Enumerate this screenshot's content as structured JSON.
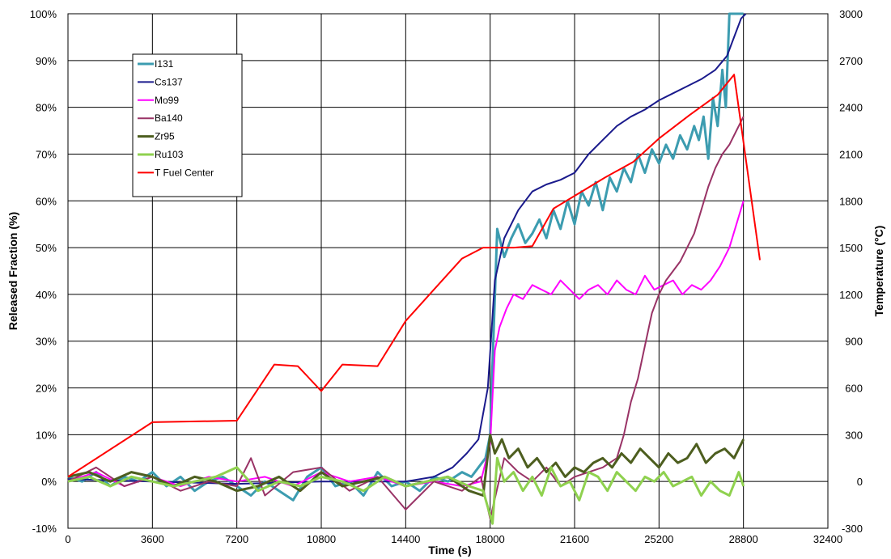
{
  "chart_data": {
    "type": "line",
    "xlabel": "Time (s)",
    "ylabel": "Released Fraction  (%)",
    "y2label": "Temperature (°C)",
    "xlim": [
      0,
      32400
    ],
    "ylim": [
      -10,
      100
    ],
    "y2lim": [
      -300,
      3000
    ],
    "grid": true,
    "legend_position": "top-left",
    "x_ticks": [
      "0",
      "3600",
      "7200",
      "10800",
      "14400",
      "18000",
      "21600",
      "25200",
      "28800",
      "32400"
    ],
    "y_ticks": [
      "-10%",
      "0%",
      "10%",
      "20%",
      "30%",
      "40%",
      "50%",
      "60%",
      "70%",
      "80%",
      "90%",
      "100%"
    ],
    "y2_ticks": [
      "-300",
      "0",
      "300",
      "600",
      "900",
      "1200",
      "1500",
      "1800",
      "2100",
      "2400",
      "2700",
      "3000"
    ],
    "series": [
      {
        "name": "I131",
        "axis": "left",
        "color": "#3c9cb0",
        "width": 3,
        "x": [
          0,
          600,
          1200,
          1800,
          2400,
          3000,
          3600,
          4200,
          4800,
          5400,
          6000,
          6600,
          7200,
          7800,
          8400,
          9000,
          9600,
          10200,
          10800,
          11400,
          12000,
          12600,
          13200,
          13800,
          14400,
          15000,
          15600,
          16200,
          16800,
          17200,
          17500,
          17800,
          18000,
          18100,
          18300,
          18600,
          18900,
          19200,
          19500,
          19800,
          20100,
          20400,
          20700,
          21000,
          21300,
          21600,
          21900,
          22200,
          22500,
          22800,
          23100,
          23400,
          23700,
          24000,
          24300,
          24600,
          24900,
          25200,
          25500,
          25800,
          26100,
          26400,
          26700,
          26900,
          27100,
          27300,
          27500,
          27700,
          27900,
          28050,
          28200,
          28400,
          28600,
          28800
        ],
        "y": [
          1,
          0,
          2,
          -1,
          1,
          0,
          2,
          -1,
          1,
          -2,
          0,
          1,
          -1,
          -3,
          0,
          -2,
          -4,
          1,
          3,
          -1,
          0,
          -3,
          2,
          -1,
          0,
          -2,
          1,
          0,
          2,
          1,
          3,
          5,
          10,
          25,
          54,
          48,
          52,
          55,
          51,
          53,
          56,
          52,
          58,
          54,
          60,
          55,
          62,
          59,
          64,
          58,
          65,
          62,
          67,
          64,
          70,
          66,
          71,
          68,
          72,
          69,
          74,
          71,
          76,
          73,
          78,
          69,
          82,
          76,
          88,
          80,
          100,
          100,
          100,
          100
        ]
      },
      {
        "name": "Cs137",
        "axis": "left",
        "color": "#1a1a8c",
        "width": 2,
        "x": [
          0,
          3600,
          7200,
          10800,
          14400,
          15600,
          16400,
          17000,
          17500,
          17900,
          18200,
          18600,
          19200,
          19800,
          20400,
          21000,
          21600,
          22200,
          22800,
          23400,
          24000,
          24600,
          25200,
          25800,
          26400,
          27000,
          27600,
          28100,
          28400,
          28700,
          28900
        ],
        "y": [
          0.5,
          0,
          -0.5,
          0,
          0,
          1,
          3,
          6,
          9,
          20,
          43,
          52,
          58,
          62,
          63.5,
          64.5,
          66,
          70,
          73,
          76,
          78,
          79.5,
          81.5,
          83,
          84.5,
          86,
          88,
          91,
          95,
          99,
          100
        ]
      },
      {
        "name": "Mo99",
        "axis": "left",
        "color": "#ff00ff",
        "width": 2,
        "x": [
          0,
          1200,
          2400,
          3600,
          4800,
          6000,
          7200,
          8400,
          9600,
          10800,
          12000,
          13200,
          14400,
          15600,
          16800,
          17600,
          18000,
          18200,
          18400,
          18700,
          19000,
          19400,
          19800,
          20200,
          20600,
          21000,
          21400,
          21800,
          22200,
          22600,
          23000,
          23400,
          23800,
          24200,
          24600,
          25000,
          25400,
          25800,
          26200,
          26600,
          27000,
          27400,
          27800,
          28200,
          28500,
          28800
        ],
        "y": [
          0,
          2,
          -1,
          1,
          -1,
          1,
          0,
          1,
          -1,
          2,
          0,
          1,
          -1,
          0,
          -1,
          0,
          8,
          28,
          33,
          37,
          40,
          39,
          42,
          41,
          40,
          43,
          41,
          39,
          41,
          42,
          40,
          43,
          41,
          40,
          44,
          41,
          42,
          43,
          40,
          42,
          41,
          43,
          46,
          50,
          55,
          60
        ]
      },
      {
        "name": "Ba140",
        "axis": "left",
        "color": "#993366",
        "width": 2,
        "x": [
          0,
          1200,
          2400,
          3600,
          4800,
          6000,
          7200,
          7800,
          8400,
          9600,
          10800,
          12000,
          13200,
          14400,
          15600,
          16800,
          17600,
          18000,
          18600,
          19200,
          19800,
          20400,
          21000,
          21600,
          22200,
          22800,
          23400,
          23700,
          24000,
          24300,
          24600,
          24900,
          25200,
          25500,
          25800,
          26100,
          26400,
          26700,
          27000,
          27300,
          27600,
          27900,
          28200,
          28500,
          28800
        ],
        "y": [
          0,
          3,
          -1,
          1,
          -2,
          0,
          -1,
          5,
          -3,
          2,
          3,
          -2,
          1,
          -6,
          0,
          -2,
          1,
          -8,
          5,
          2,
          0,
          3,
          -1,
          1,
          2,
          3,
          5,
          10,
          17,
          22,
          29,
          36,
          40,
          43,
          45,
          47,
          50,
          53,
          58,
          63,
          67,
          70,
          72,
          75,
          78
        ]
      },
      {
        "name": "Zr95",
        "axis": "left",
        "color": "#4d5e1f",
        "width": 3,
        "x": [
          0,
          900,
          1800,
          2700,
          3600,
          4500,
          5400,
          6300,
          7200,
          8100,
          9000,
          9900,
          10800,
          11700,
          12600,
          13500,
          14400,
          15300,
          16200,
          17100,
          17700,
          18000,
          18200,
          18500,
          18800,
          19200,
          19600,
          20000,
          20400,
          20800,
          21200,
          21600,
          22000,
          22400,
          22800,
          23200,
          23600,
          24000,
          24400,
          24800,
          25200,
          25600,
          26000,
          26400,
          26800,
          27200,
          27600,
          28000,
          28400,
          28800
        ],
        "y": [
          1,
          2,
          0,
          2,
          1,
          -1,
          1,
          0,
          -2,
          -1,
          1,
          -2,
          2,
          -1,
          0,
          1,
          -1,
          0,
          1,
          -2,
          -3,
          10,
          6,
          9,
          5,
          7,
          3,
          5,
          2,
          4,
          1,
          3,
          2,
          4,
          5,
          3,
          6,
          4,
          7,
          5,
          3,
          6,
          4,
          5,
          8,
          4,
          6,
          7,
          5,
          9
        ]
      },
      {
        "name": "Ru103",
        "axis": "left",
        "color": "#8fd14f",
        "width": 3,
        "x": [
          0,
          900,
          1800,
          2700,
          3600,
          4500,
          5400,
          6300,
          7200,
          8100,
          9000,
          9900,
          10800,
          11700,
          12600,
          13500,
          14400,
          15300,
          16200,
          17100,
          17700,
          18100,
          18300,
          18600,
          19000,
          19400,
          19800,
          20200,
          20600,
          21000,
          21400,
          21800,
          22200,
          22600,
          23000,
          23400,
          23800,
          24200,
          24600,
          25000,
          25400,
          25800,
          26200,
          26600,
          27000,
          27400,
          27800,
          28200,
          28600,
          28800
        ],
        "y": [
          0,
          1,
          -1,
          1,
          0,
          -1,
          0,
          1,
          3,
          -2,
          0,
          -1,
          1,
          0,
          -2,
          1,
          -1,
          0,
          1,
          -1,
          -2,
          -9,
          5,
          0,
          2,
          -2,
          1,
          -3,
          3,
          -1,
          0,
          -4,
          2,
          1,
          -2,
          2,
          0,
          -2,
          1,
          0,
          2,
          -1,
          0,
          1,
          -3,
          0,
          -2,
          -3,
          2,
          -1
        ]
      },
      {
        "name": "T Fuel Center",
        "axis": "right",
        "color": "#ff0000",
        "width": 2,
        "x": [
          0,
          3600,
          7200,
          8800,
          9800,
          10800,
          11700,
          13200,
          14400,
          15600,
          16800,
          17700,
          19000,
          19800,
          20700,
          21800,
          22900,
          24100,
          25200,
          26500,
          27700,
          28400,
          29500
        ],
        "y": [
          30,
          380,
          390,
          750,
          740,
          580,
          750,
          740,
          1030,
          1230,
          1430,
          1500,
          1500,
          1510,
          1750,
          1850,
          1950,
          2050,
          2200,
          2350,
          2480,
          2610,
          1420
        ]
      }
    ]
  }
}
